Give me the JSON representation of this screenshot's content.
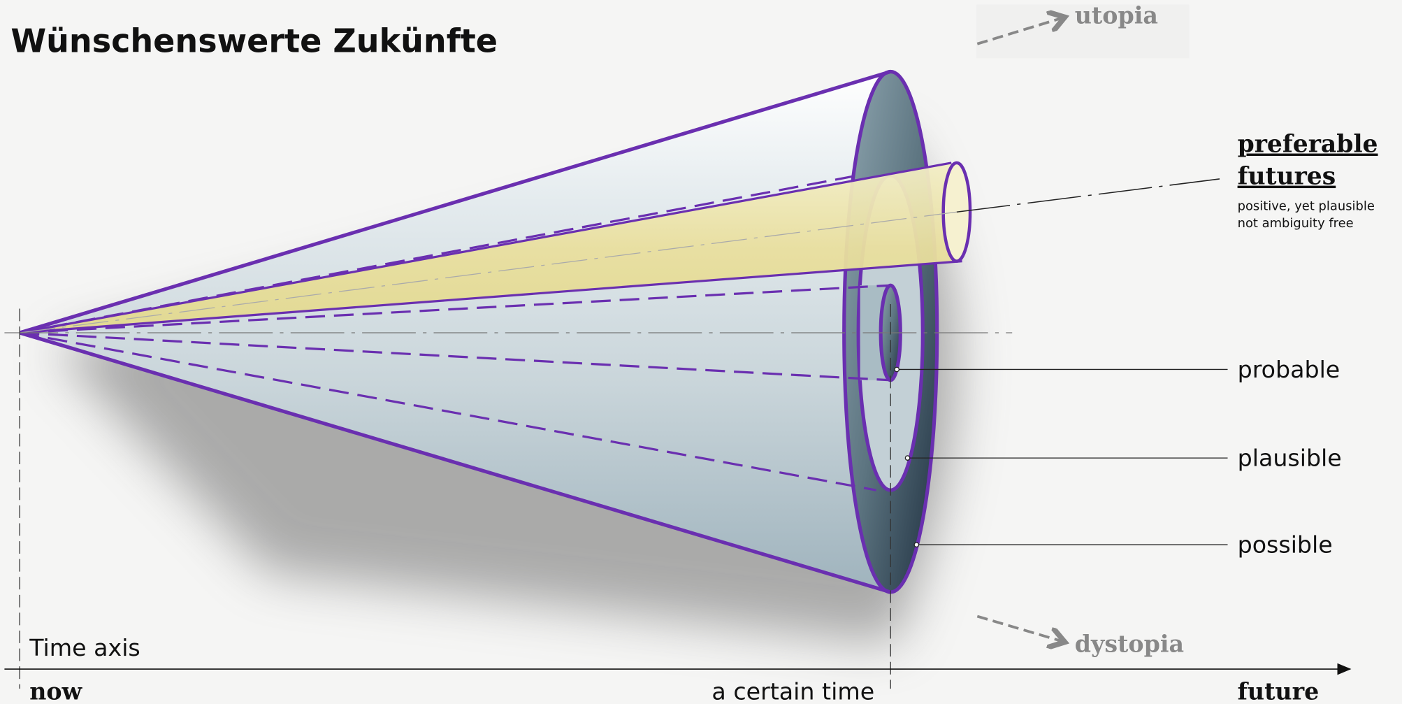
{
  "header": {
    "title": "Wünschenswerte Zukünfte"
  },
  "scenarios": {
    "utopia": "utopia",
    "dystopia": "dystopia"
  },
  "preferable": {
    "title_lines": [
      "preferable",
      "futures"
    ],
    "notes": [
      "positive, yet plausible",
      "not ambiguity free"
    ]
  },
  "cones": [
    {
      "label": "probable"
    },
    {
      "label": "plausible"
    },
    {
      "label": "possible"
    }
  ],
  "time_axis": {
    "label": "Time axis",
    "start": "now",
    "mid": "a certain time",
    "end": "future"
  }
}
